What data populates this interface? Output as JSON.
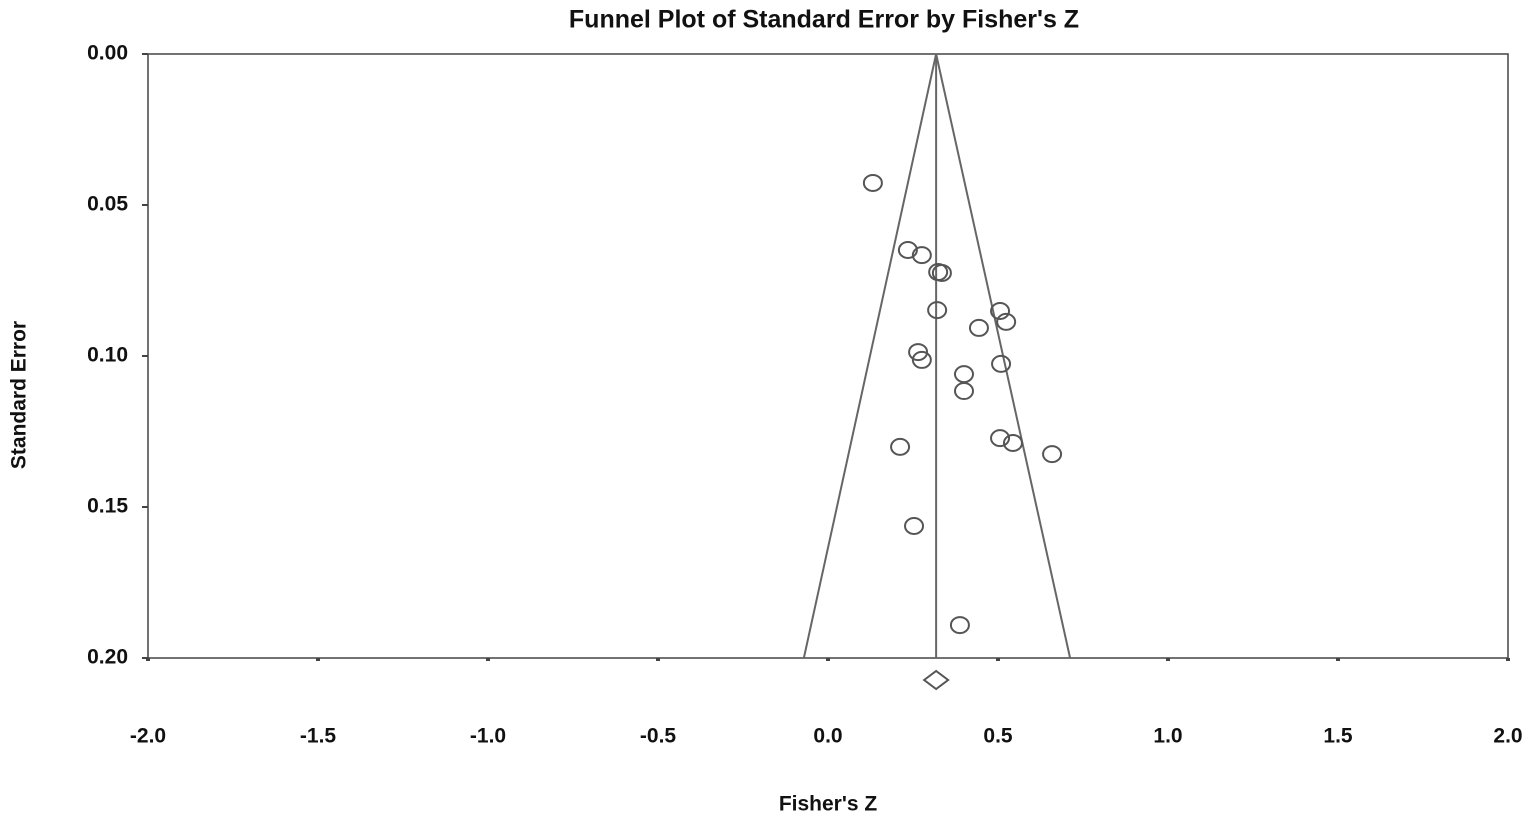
{
  "chart_data": {
    "type": "scatter",
    "title": "Funnel Plot of Standard Error by Fisher's Z",
    "x_label": "Fisher's Z",
    "y_label": "Standard Error",
    "x": [
      0.132,
      0.235,
      0.276,
      0.324,
      0.335,
      0.321,
      0.506,
      0.524,
      0.444,
      0.265,
      0.276,
      0.509,
      0.4,
      0.4,
      0.506,
      0.544,
      0.212,
      0.659,
      0.253,
      0.388
    ],
    "values": [
      0.0427,
      0.0649,
      0.0666,
      0.0722,
      0.0725,
      0.0848,
      0.0851,
      0.0887,
      0.0907,
      0.0987,
      0.1013,
      0.1026,
      0.106,
      0.1116,
      0.1272,
      0.1288,
      0.1301,
      0.1325,
      0.1563,
      0.1891
    ],
    "mean": 0.318,
    "funnel_base": [
      -0.071,
      0.712
    ],
    "color": "#555555",
    "xlim": [
      -2,
      2
    ],
    "xticks": [
      {
        "value": -2,
        "label": "-2.0"
      },
      {
        "value": -1.5,
        "label": "-1.5"
      },
      {
        "value": -1,
        "label": "-1.0"
      },
      {
        "value": -0.5,
        "label": "-0.5"
      },
      {
        "value": 0,
        "label": "0.0"
      },
      {
        "value": 0.5,
        "label": "0.5"
      },
      {
        "value": 1,
        "label": "1.0"
      },
      {
        "value": 1.5,
        "label": "1.5"
      },
      {
        "value": 2,
        "label": "2.0"
      }
    ],
    "ylim": [
      0,
      0.2
    ],
    "y_inverted": true,
    "yticks": [
      {
        "value": 0,
        "label": "0.00"
      },
      {
        "value": 0.05,
        "label": "0.05"
      },
      {
        "value": 0.1,
        "label": "0.10"
      },
      {
        "value": 0.15,
        "label": "0.15"
      },
      {
        "value": 0.2,
        "label": "0.20"
      }
    ]
  }
}
